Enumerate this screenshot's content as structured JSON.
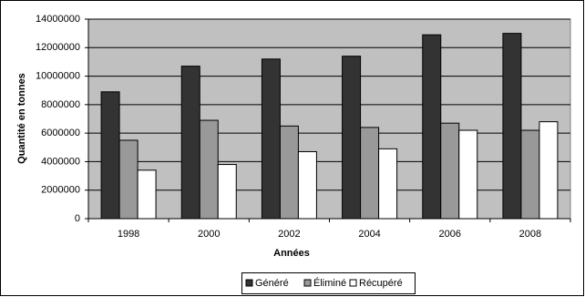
{
  "chart_data": {
    "type": "bar",
    "categories": [
      "1998",
      "2000",
      "2002",
      "2004",
      "2006",
      "2008"
    ],
    "series": [
      {
        "name": "Généré",
        "color": "#333333",
        "values": [
          8900000,
          10700000,
          11200000,
          11400000,
          12900000,
          13000000
        ]
      },
      {
        "name": "Éliminé",
        "color": "#999999",
        "values": [
          5500000,
          6900000,
          6500000,
          6400000,
          6700000,
          6200000
        ]
      },
      {
        "name": "Récupéré",
        "color": "#ffffff",
        "values": [
          3400000,
          3800000,
          4700000,
          4900000,
          6200000,
          6800000
        ]
      }
    ],
    "xlabel": "Années",
    "ylabel": "Quantité en tonnes",
    "ylim": [
      0,
      14000000
    ],
    "yticks": [
      0,
      2000000,
      4000000,
      6000000,
      8000000,
      10000000,
      12000000,
      14000000
    ],
    "grid": true,
    "legend": "bottom",
    "plot_background": "#c0c0c0"
  }
}
